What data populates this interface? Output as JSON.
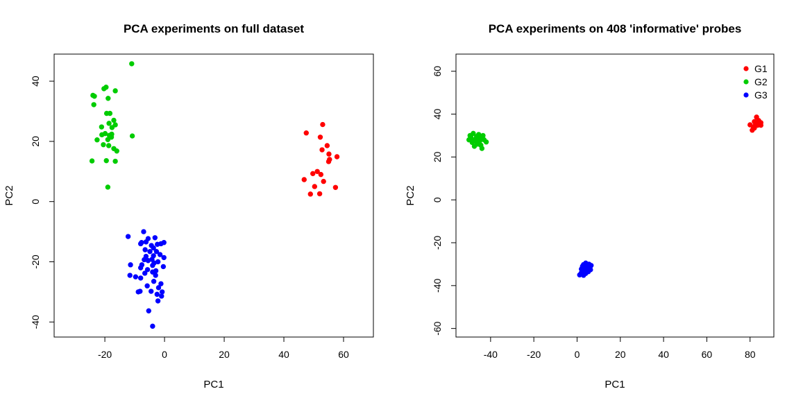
{
  "chart_data": [
    {
      "type": "scatter",
      "title": "PCA experiments on full dataset",
      "xlabel": "PC1",
      "ylabel": "PC2",
      "xlim": [
        -37,
        70
      ],
      "ylim": [
        -45,
        49
      ],
      "xticks": [
        -20,
        0,
        20,
        40,
        60
      ],
      "yticks": [
        -40,
        -20,
        0,
        20,
        40
      ],
      "grid": false,
      "legend": null,
      "series": [
        {
          "color": "#FF0000",
          "points": [
            [
              47.5,
              22.8
            ],
            [
              53,
              25.6
            ],
            [
              52.2,
              21.4
            ],
            [
              54.5,
              18.6
            ],
            [
              52.8,
              17.2
            ],
            [
              55.1,
              15.8
            ],
            [
              55.3,
              14.0
            ],
            [
              57.8,
              14.9
            ],
            [
              55.0,
              13.3
            ],
            [
              51.2,
              10.0
            ],
            [
              49.7,
              9.3
            ],
            [
              52.4,
              9.0
            ],
            [
              46.8,
              7.3
            ],
            [
              53.3,
              6.7
            ],
            [
              50.3,
              5.0
            ],
            [
              57.3,
              4.7
            ],
            [
              48.9,
              2.5
            ],
            [
              52.0,
              2.6
            ]
          ]
        },
        {
          "color": "#00CC00",
          "points": [
            [
              -11.0,
              45.8
            ],
            [
              -19.6,
              38.0
            ],
            [
              -20.3,
              37.5
            ],
            [
              -16.5,
              36.8
            ],
            [
              -24.0,
              35.3
            ],
            [
              -23.5,
              35.0
            ],
            [
              -18.9,
              34.3
            ],
            [
              -23.7,
              32.2
            ],
            [
              -18.3,
              29.3
            ],
            [
              -19.4,
              29.3
            ],
            [
              -17.0,
              27.0
            ],
            [
              -18.6,
              26.0
            ],
            [
              -16.5,
              25.5
            ],
            [
              -21.1,
              24.8
            ],
            [
              -17.6,
              24.6
            ],
            [
              -19.9,
              22.6
            ],
            [
              -17.7,
              22.4
            ],
            [
              -21.0,
              22.2
            ],
            [
              -18.5,
              22.0
            ],
            [
              -10.8,
              21.8
            ],
            [
              -17.8,
              21.4
            ],
            [
              -19.0,
              20.6
            ],
            [
              -22.6,
              20.5
            ],
            [
              -20.5,
              18.9
            ],
            [
              -18.7,
              18.6
            ],
            [
              -17.0,
              17.6
            ],
            [
              -16.0,
              16.8
            ],
            [
              -24.3,
              13.5
            ],
            [
              -19.5,
              13.6
            ],
            [
              -16.5,
              13.4
            ],
            [
              -19.0,
              4.8
            ]
          ]
        },
        {
          "color": "#0000FF",
          "points": [
            [
              -7.0,
              -10.0
            ],
            [
              -12.2,
              -11.6
            ],
            [
              -5.5,
              -12.3
            ],
            [
              -3.2,
              -12.0
            ],
            [
              -7.7,
              -13.6
            ],
            [
              -6.2,
              -13.4
            ],
            [
              -8.0,
              -14.0
            ],
            [
              -2.4,
              -14.2
            ],
            [
              -0.2,
              -13.6
            ],
            [
              -1.2,
              -14.0
            ],
            [
              -4.4,
              -14.6
            ],
            [
              -3.7,
              -15.4
            ],
            [
              -6.5,
              -16.0
            ],
            [
              -2.7,
              -16.6
            ],
            [
              -4.9,
              -16.6
            ],
            [
              -1.5,
              -17.6
            ],
            [
              -3.7,
              -18.0
            ],
            [
              -6.2,
              -18.2
            ],
            [
              -0.2,
              -18.6
            ],
            [
              -4.2,
              -19.2
            ],
            [
              -5.5,
              -19.6
            ],
            [
              -6.8,
              -19.3
            ],
            [
              -2.2,
              -20.0
            ],
            [
              -3.5,
              -20.4
            ],
            [
              -7.6,
              -21.0
            ],
            [
              -11.4,
              -21.0
            ],
            [
              -4.0,
              -21.2
            ],
            [
              -0.4,
              -21.6
            ],
            [
              -8.0,
              -22.0
            ],
            [
              -5.7,
              -22.6
            ],
            [
              -2.9,
              -23.0
            ],
            [
              -4.0,
              -23.4
            ],
            [
              -6.6,
              -23.8
            ],
            [
              -11.6,
              -24.5
            ],
            [
              -3.0,
              -24.5
            ],
            [
              -9.7,
              -25.0
            ],
            [
              -8.0,
              -25.4
            ],
            [
              -3.6,
              -26.5
            ],
            [
              -1.2,
              -27.3
            ],
            [
              -5.8,
              -28.0
            ],
            [
              -2.0,
              -28.6
            ],
            [
              -8.2,
              -29.8
            ],
            [
              -8.8,
              -30.0
            ],
            [
              -0.8,
              -30.0
            ],
            [
              -4.5,
              -29.8
            ],
            [
              -2.5,
              -30.8
            ],
            [
              -1.0,
              -31.4
            ],
            [
              -2.2,
              -33.0
            ],
            [
              -5.3,
              -36.3
            ],
            [
              -4.0,
              -41.4
            ]
          ]
        }
      ]
    },
    {
      "type": "scatter",
      "title": "PCA experiments on 408 'informative' probes",
      "xlabel": "PC1",
      "ylabel": "PC2",
      "xlim": [
        -56,
        91
      ],
      "ylim": [
        -64,
        68
      ],
      "xticks": [
        -40,
        -20,
        0,
        20,
        40,
        60,
        80
      ],
      "yticks": [
        -60,
        -40,
        -20,
        0,
        20,
        40,
        60
      ],
      "grid": false,
      "legend": {
        "position": "top-right",
        "entries": [
          "G1",
          "G2",
          "G3"
        ]
      },
      "series": [
        {
          "name": "G1",
          "color": "#FF0000",
          "points": [
            [
              83.0,
              38.6
            ],
            [
              84.0,
              37.0
            ],
            [
              82.0,
              36.5
            ],
            [
              85.0,
              36.0
            ],
            [
              80.0,
              35.0
            ],
            [
              82.5,
              35.2
            ],
            [
              83.5,
              34.8
            ],
            [
              84.5,
              35.6
            ],
            [
              81.5,
              34.0
            ],
            [
              82.0,
              33.5
            ],
            [
              81.0,
              32.5
            ],
            [
              83.0,
              36.0
            ],
            [
              85.0,
              34.8
            ]
          ]
        },
        {
          "name": "G2",
          "color": "#00CC00",
          "points": [
            [
              -48.0,
              31.0
            ],
            [
              -45.5,
              30.5
            ],
            [
              -43.5,
              30.0
            ],
            [
              -46.5,
              29.5
            ],
            [
              -49.0,
              29.0
            ],
            [
              -44.0,
              28.8
            ],
            [
              -47.0,
              28.2
            ],
            [
              -50.0,
              28.0
            ],
            [
              -42.0,
              27.0
            ],
            [
              -45.0,
              27.5
            ],
            [
              -48.5,
              26.8
            ],
            [
              -46.0,
              26.0
            ],
            [
              -44.5,
              25.5
            ],
            [
              -47.5,
              25.0
            ],
            [
              -44.0,
              24.0
            ],
            [
              -43.0,
              28.0
            ],
            [
              -49.5,
              30.0
            ],
            [
              -45.0,
              29.0
            ],
            [
              -46.5,
              27.0
            ],
            [
              -48.0,
              27.8
            ]
          ]
        },
        {
          "name": "G3",
          "color": "#0000FF",
          "points": [
            [
              4.0,
              -29.5
            ],
            [
              5.5,
              -30.0
            ],
            [
              3.0,
              -30.2
            ],
            [
              6.5,
              -30.6
            ],
            [
              2.5,
              -31.0
            ],
            [
              4.5,
              -31.2
            ],
            [
              6.0,
              -31.5
            ],
            [
              3.5,
              -31.8
            ],
            [
              5.0,
              -32.0
            ],
            [
              2.0,
              -32.3
            ],
            [
              4.0,
              -32.8
            ],
            [
              6.2,
              -32.6
            ],
            [
              3.2,
              -33.3
            ],
            [
              5.2,
              -33.5
            ],
            [
              2.0,
              -34.0
            ],
            [
              4.0,
              -34.3
            ],
            [
              1.2,
              -35.0
            ],
            [
              3.0,
              -35.2
            ]
          ]
        }
      ]
    }
  ]
}
